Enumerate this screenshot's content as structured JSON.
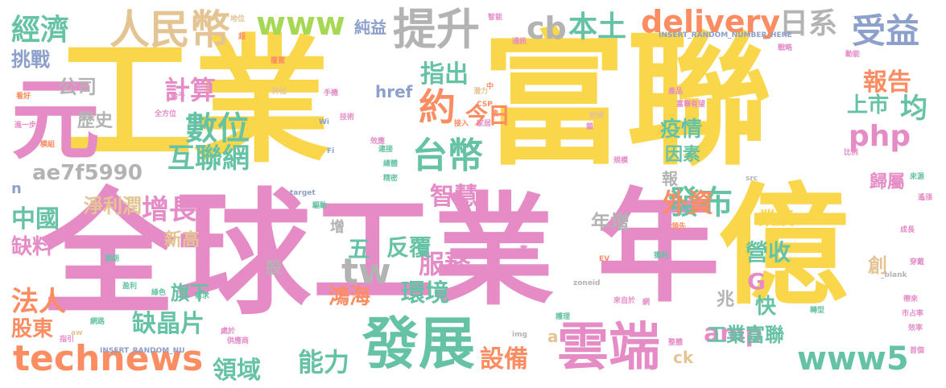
{
  "palette": {
    "yellow": "#f9d64a",
    "pink": "#e58cc7",
    "green": "#66c2a5",
    "orange": "#fc8d62",
    "gray": "#b3b3b3",
    "blue": "#8da0cb",
    "lime": "#a6d854",
    "tan": "#e5c494"
  },
  "words": [
    {
      "text": "工業",
      "color": "yellow"
    },
    {
      "text": "富聯",
      "color": "yellow"
    },
    {
      "text": "全球",
      "color": "pink"
    },
    {
      "text": "工業",
      "color": "pink"
    },
    {
      "text": "年",
      "color": "pink"
    },
    {
      "text": "億",
      "color": "yellow"
    },
    {
      "text": "元",
      "color": "pink"
    },
    {
      "text": "發展",
      "color": "green"
    },
    {
      "text": "雲端",
      "color": "pink"
    },
    {
      "text": "technews",
      "color": "orange"
    },
    {
      "text": "提升",
      "color": "gray"
    },
    {
      "text": "人民幣",
      "color": "tan"
    },
    {
      "text": "www",
      "color": "lime"
    },
    {
      "text": "delivery",
      "color": "orange"
    },
    {
      "text": "台幣",
      "color": "green"
    },
    {
      "text": "數位",
      "color": "green"
    },
    {
      "text": "互聯網",
      "color": "green"
    },
    {
      "text": "經濟",
      "color": "green"
    },
    {
      "text": "受益",
      "color": "blue"
    },
    {
      "text": "日系",
      "color": "gray"
    },
    {
      "text": "cb",
      "color": "gray"
    },
    {
      "text": "本土",
      "color": "green"
    },
    {
      "text": "計算",
      "color": "pink"
    },
    {
      "text": "約",
      "color": "orange"
    },
    {
      "text": "php",
      "color": "pink"
    },
    {
      "text": "發布",
      "color": "green"
    },
    {
      "text": "www5",
      "color": "green"
    },
    {
      "text": "amp",
      "color": "pink"
    },
    {
      "text": "tw",
      "color": "gray"
    },
    {
      "text": "服務",
      "color": "pink"
    },
    {
      "text": "智慧",
      "color": "pink"
    },
    {
      "text": "增長",
      "color": "pink"
    },
    {
      "text": "外資",
      "color": "orange"
    },
    {
      "text": "能力",
      "color": "green"
    },
    {
      "text": "設備",
      "color": "orange"
    },
    {
      "text": "領域",
      "color": "green"
    },
    {
      "text": "中國",
      "color": "green"
    },
    {
      "text": "法人",
      "color": "orange"
    },
    {
      "text": "報告",
      "color": "orange"
    },
    {
      "text": "均",
      "color": "green"
    },
    {
      "text": "上市",
      "color": "green"
    },
    {
      "text": "指出",
      "color": "green"
    },
    {
      "text": "今日",
      "color": "orange"
    },
    {
      "text": "ae7f5990",
      "color": "gray"
    },
    {
      "text": "公司",
      "color": "gray"
    },
    {
      "text": "挑戰",
      "color": "blue"
    },
    {
      "text": "歷史",
      "color": "gray"
    },
    {
      "text": "缺料",
      "color": "pink"
    },
    {
      "text": "股東",
      "color": "orange"
    },
    {
      "text": "缺晶片",
      "color": "green"
    },
    {
      "text": "工業富聯",
      "color": "green"
    },
    {
      "text": "環境",
      "color": "green"
    },
    {
      "text": "鴻海",
      "color": "orange"
    },
    {
      "text": "反覆",
      "color": "green"
    },
    {
      "text": "五",
      "color": "green"
    },
    {
      "text": "淨利潤",
      "color": "tan"
    },
    {
      "text": "新高",
      "color": "tan"
    },
    {
      "text": "旗下",
      "color": "green"
    },
    {
      "text": "營收",
      "color": "green"
    },
    {
      "text": "業績",
      "color": "yellow"
    },
    {
      "text": "G",
      "color": "pink"
    },
    {
      "text": "快",
      "color": "green"
    },
    {
      "text": "創",
      "color": "tan"
    },
    {
      "text": "疫情",
      "color": "green"
    },
    {
      "text": "因素",
      "color": "green"
    },
    {
      "text": "報",
      "color": "gray"
    },
    {
      "text": "歸屬",
      "color": "pink"
    },
    {
      "text": "href",
      "color": "blue"
    },
    {
      "text": "純益",
      "color": "blue"
    },
    {
      "text": "年增",
      "color": "gray"
    },
    {
      "text": "兆",
      "color": "gray"
    },
    {
      "text": "股",
      "color": "gray"
    },
    {
      "text": "增",
      "color": "gray"
    },
    {
      "text": "n",
      "color": "blue"
    },
    {
      "text": "ck",
      "color": "tan"
    },
    {
      "text": "a",
      "color": "tan"
    },
    {
      "text": "zoneid",
      "color": "gray"
    },
    {
      "text": "target",
      "color": "blue"
    },
    {
      "text": "INSERT_RANDOM_NUMBER_HERE",
      "color": "blue"
    },
    {
      "text": "INSERT_RANDOM_NU",
      "color": "blue"
    },
    {
      "text": "_blank",
      "color": "gray"
    },
    {
      "text": "CSP",
      "color": "orange"
    },
    {
      "text": "Wi",
      "color": "blue"
    },
    {
      "text": "Fi",
      "color": "blue"
    },
    {
      "text": "img",
      "color": "gray"
    },
    {
      "text": "src",
      "color": "gray"
    },
    {
      "text": "EV",
      "color": "orange"
    },
    {
      "text": "aw",
      "color": "tan"
    },
    {
      "text": "智能",
      "color": "pink"
    },
    {
      "text": "通訊",
      "color": "pink"
    },
    {
      "text": "地位",
      "color": "tan"
    },
    {
      "text": "戰略",
      "color": "pink"
    },
    {
      "text": "手機",
      "color": "pink"
    },
    {
      "text": "評估",
      "color": "tan"
    },
    {
      "text": "技術",
      "color": "pink"
    },
    {
      "text": "數據",
      "color": "tan"
    },
    {
      "text": "潛力",
      "color": "tan"
    },
    {
      "text": "產品",
      "color": "pink"
    },
    {
      "text": "全方位",
      "color": "pink"
    },
    {
      "text": "動能",
      "color": "pink"
    },
    {
      "text": "富聯有望",
      "color": "pink"
    },
    {
      "text": "看好",
      "color": "orange"
    },
    {
      "text": "進一步",
      "color": "pink"
    },
    {
      "text": "模組",
      "color": "orange"
    },
    {
      "text": "覆蓋",
      "color": "orange"
    },
    {
      "text": "家居",
      "color": "pink"
    },
    {
      "text": "效應",
      "color": "pink"
    },
    {
      "text": "總體",
      "color": "green"
    },
    {
      "text": "精密",
      "color": "green"
    },
    {
      "text": "驅動",
      "color": "green"
    },
    {
      "text": "預期",
      "color": "green"
    },
    {
      "text": "盈利",
      "color": "green"
    },
    {
      "text": "綠色",
      "color": "green"
    },
    {
      "text": "需求",
      "color": "green"
    },
    {
      "text": "網路",
      "color": "green"
    },
    {
      "text": "指引",
      "color": "pink"
    },
    {
      "text": "處於",
      "color": "pink"
    },
    {
      "text": "供應商",
      "color": "pink"
    },
    {
      "text": "轉型",
      "color": "green"
    },
    {
      "text": "獲利",
      "color": "green"
    },
    {
      "text": "成長",
      "color": "pink"
    },
    {
      "text": "來源",
      "color": "green"
    },
    {
      "text": "市占率",
      "color": "pink"
    },
    {
      "text": "效率",
      "color": "pink"
    },
    {
      "text": "帶來",
      "color": "pink"
    },
    {
      "text": "穿戴",
      "color": "pink"
    },
    {
      "text": "整體",
      "color": "pink"
    },
    {
      "text": "比例",
      "color": "pink"
    },
    {
      "text": "領先",
      "color": "orange"
    },
    {
      "text": "來自於",
      "color": "pink"
    },
    {
      "text": "規模",
      "color": "pink"
    },
    {
      "text": "首個",
      "color": "pink"
    },
    {
      "text": "遙漲",
      "color": "pink"
    },
    {
      "text": "超",
      "color": "orange"
    },
    {
      "text": "實",
      "color": "pink"
    },
    {
      "text": "身",
      "color": "pink"
    },
    {
      "text": "鎖",
      "color": "pink"
    },
    {
      "text": "中",
      "color": "orange"
    },
    {
      "text": "業",
      "color": "orange"
    },
    {
      "text": "網",
      "color": "pink"
    },
    {
      "text": "護理",
      "color": "green"
    },
    {
      "text": "接入",
      "color": "orange"
    },
    {
      "text": "連接",
      "color": "green"
    },
    {
      "text": "給予",
      "color": "pink"
    }
  ]
}
